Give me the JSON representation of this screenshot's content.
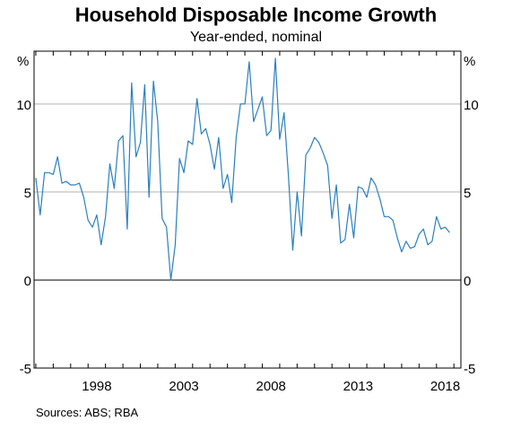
{
  "chart_data": {
    "type": "line",
    "title": "Household Disposable Income Growth",
    "subtitle": "Year-ended, nominal",
    "ylabel_left": "%",
    "ylabel_right": "%",
    "ylim": [
      -5,
      13
    ],
    "yticks": [
      -5,
      0,
      5,
      10
    ],
    "xlim": [
      1994.9,
      2019.4
    ],
    "xticks": [
      1998,
      2003,
      2008,
      2013,
      2018
    ],
    "grid": true,
    "source": "Sources:   ABS; RBA",
    "color": "#2a7fc1",
    "series": [
      {
        "x": [
          1995.0,
          1995.25,
          1995.5,
          1995.75,
          1996.0,
          1996.25,
          1996.5,
          1996.75,
          1997.0,
          1997.25,
          1997.5,
          1997.75,
          1998.0,
          1998.25,
          1998.5,
          1998.75,
          1999.0,
          1999.25,
          1999.5,
          1999.75,
          2000.0,
          2000.25,
          2000.5,
          2000.75,
          2001.0,
          2001.25,
          2001.5,
          2001.75,
          2002.0,
          2002.25,
          2002.5,
          2002.75,
          2003.0,
          2003.25,
          2003.5,
          2003.75,
          2004.0,
          2004.25,
          2004.5,
          2004.75,
          2005.0,
          2005.25,
          2005.5,
          2005.75,
          2006.0,
          2006.25,
          2006.5,
          2006.75,
          2007.0,
          2007.25,
          2007.5,
          2007.75,
          2008.0,
          2008.25,
          2008.5,
          2008.75,
          2009.0,
          2009.25,
          2009.5,
          2009.75,
          2010.0,
          2010.25,
          2010.5,
          2010.75,
          2011.0,
          2011.25,
          2011.5,
          2011.75,
          2012.0,
          2012.25,
          2012.5,
          2012.75,
          2013.0,
          2013.25,
          2013.5,
          2013.75,
          2014.0,
          2014.25,
          2014.5,
          2014.75,
          2015.0,
          2015.25,
          2015.5,
          2015.75,
          2016.0,
          2016.25,
          2016.5,
          2016.75,
          2017.0,
          2017.25,
          2017.5,
          2017.75,
          2018.0,
          2018.25,
          2018.5,
          2018.75
        ],
        "values": [
          5.8,
          3.7,
          6.1,
          6.1,
          6.0,
          7.0,
          5.5,
          5.6,
          5.4,
          5.4,
          5.5,
          4.7,
          3.4,
          3.0,
          3.7,
          2.0,
          3.6,
          6.6,
          5.2,
          7.9,
          8.2,
          2.9,
          11.2,
          7.0,
          7.8,
          11.1,
          4.7,
          11.3,
          9.0,
          3.5,
          3.0,
          0.0,
          2.0,
          6.9,
          6.1,
          7.9,
          7.7,
          10.3,
          8.3,
          8.6,
          7.7,
          6.3,
          8.1,
          5.2,
          6.0,
          4.4,
          8.1,
          10.0,
          10.0,
          12.4,
          9.0,
          9.7,
          10.4,
          8.2,
          8.5,
          12.6,
          8.0,
          9.5,
          5.9,
          1.7,
          5.0,
          2.5,
          7.1,
          7.5,
          8.1,
          7.8,
          7.2,
          6.5,
          3.5,
          5.4,
          2.1,
          2.3,
          4.3,
          2.4,
          5.3,
          5.2,
          4.7,
          5.8,
          5.4,
          4.6,
          3.6,
          3.6,
          3.4,
          2.4,
          1.6,
          2.2,
          1.8,
          1.9,
          2.6,
          2.9,
          2.0,
          2.2,
          3.6,
          2.9,
          3.0,
          2.7
        ]
      }
    ]
  }
}
